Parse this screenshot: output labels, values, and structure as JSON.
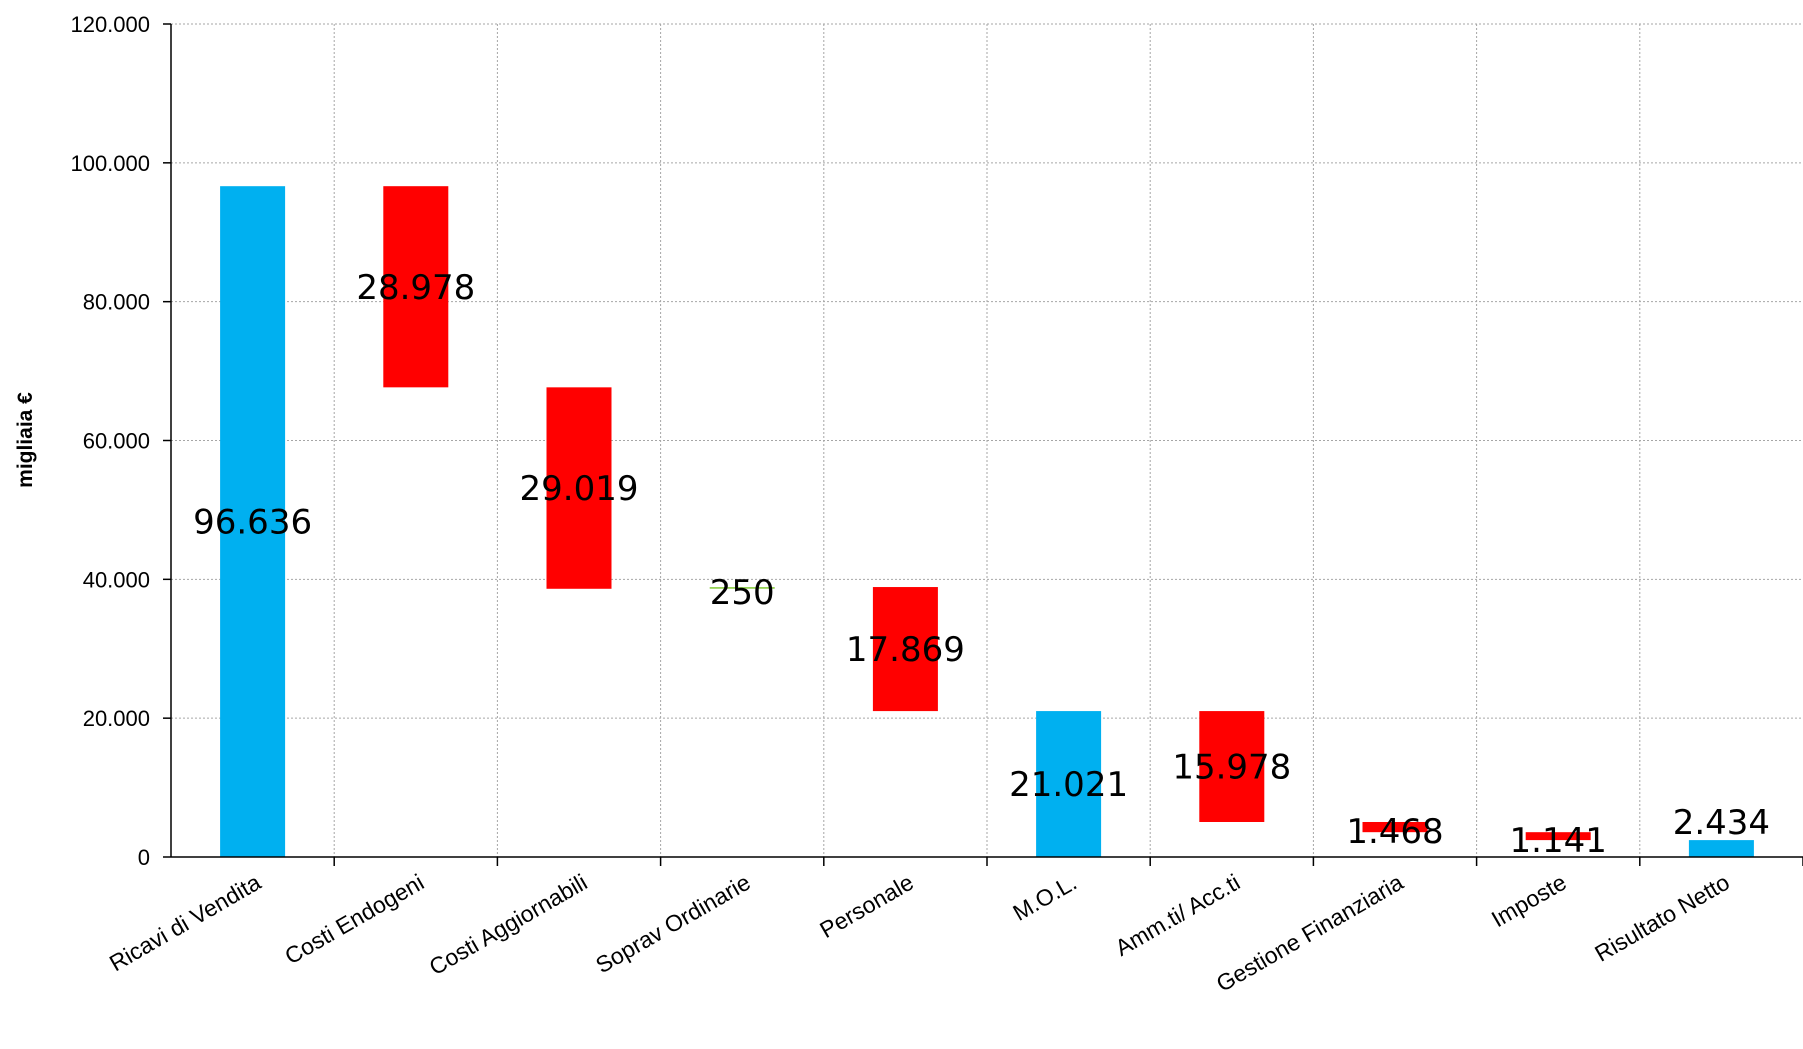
{
  "chart_data": {
    "type": "bar",
    "subtype": "waterfall",
    "ylabel": "migliaia €",
    "ylim": [
      0,
      120000
    ],
    "yticks": [
      "0",
      "20.000",
      "40.000",
      "60.000",
      "80.000",
      "100.000",
      "120.000"
    ],
    "grid": true,
    "categories": [
      "Ricavi di Vendita",
      "Costi Endogeni",
      "Costi Aggiornabili",
      "Soprav Ordinarie",
      "Personale",
      "M.O.L.",
      "Amm.ti/ Acc.ti",
      "Gestione Finanziaria",
      "Imposte",
      "Risultato Netto"
    ],
    "bars": [
      {
        "low": 0,
        "high": 96636,
        "label": "96.636",
        "kind": "total"
      },
      {
        "low": 67658,
        "high": 96636,
        "label": "28.978",
        "kind": "decrease"
      },
      {
        "low": 38639,
        "high": 67658,
        "label": "29.019",
        "kind": "decrease"
      },
      {
        "low": 38639,
        "high": 38889,
        "label": "250",
        "kind": "increase"
      },
      {
        "low": 21020,
        "high": 38889,
        "label": "17.869",
        "kind": "decrease"
      },
      {
        "low": 0,
        "high": 21021,
        "label": "21.021",
        "kind": "total"
      },
      {
        "low": 5043,
        "high": 21021,
        "label": "15.978",
        "kind": "decrease"
      },
      {
        "low": 3575,
        "high": 5043,
        "label": "1.468",
        "kind": "decrease"
      },
      {
        "low": 2434,
        "high": 3575,
        "label": "1.141",
        "kind": "decrease"
      },
      {
        "low": 0,
        "high": 2434,
        "label": "2.434",
        "kind": "total"
      }
    ],
    "colors": {
      "total": "#00B0F0",
      "decrease": "#FF0000",
      "increase": "#92D050"
    }
  }
}
